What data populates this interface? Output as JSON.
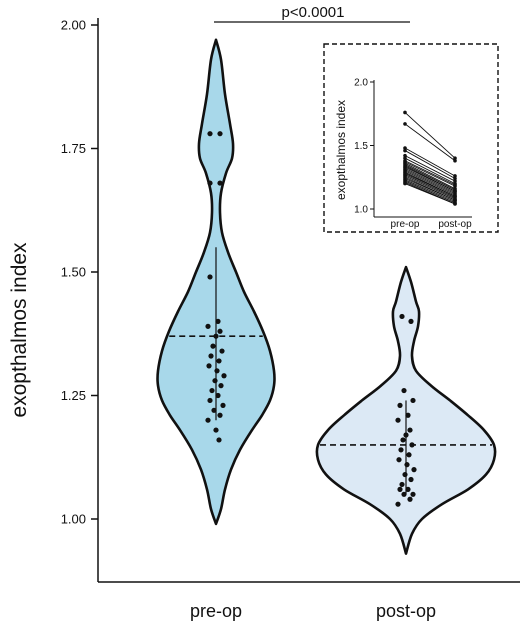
{
  "chart_data": [
    {
      "type": "violin",
      "ylabel": "exopthalmos index",
      "xlabel": "",
      "ylim": [
        1.0,
        2.0
      ],
      "yticks": [
        "1.00",
        "1.25",
        "1.50",
        "1.75",
        "2.00"
      ],
      "categories": [
        "pre-op",
        "post-op"
      ],
      "colors": {
        "pre-op": "#a8d8ea",
        "post-op": "#dce9f5"
      },
      "annotation": "p<0.0001",
      "series": [
        {
          "category": "pre-op",
          "median": 1.37,
          "whisker": [
            1.2,
            1.55
          ],
          "points": [
            1.78,
            1.78,
            1.68,
            1.68,
            1.49,
            1.4,
            1.39,
            1.38,
            1.37,
            1.35,
            1.34,
            1.33,
            1.32,
            1.31,
            1.3,
            1.29,
            1.28,
            1.27,
            1.26,
            1.25,
            1.24,
            1.23,
            1.22,
            1.21,
            1.2,
            1.18,
            1.16
          ]
        },
        {
          "category": "post-op",
          "median": 1.15,
          "whisker": [
            1.05,
            1.24
          ],
          "points": [
            1.41,
            1.4,
            1.26,
            1.24,
            1.23,
            1.21,
            1.2,
            1.18,
            1.17,
            1.16,
            1.15,
            1.14,
            1.13,
            1.12,
            1.11,
            1.1,
            1.09,
            1.08,
            1.07,
            1.06,
            1.06,
            1.05,
            1.05,
            1.04,
            1.03
          ]
        }
      ]
    },
    {
      "type": "line",
      "ylabel": "exopthalmos index",
      "ylim": [
        1.0,
        2.0
      ],
      "yticks": [
        "1.0",
        "1.5",
        "2.0"
      ],
      "categories": [
        "pre-op",
        "post-op"
      ],
      "pairs": [
        [
          1.76,
          1.4
        ],
        [
          1.67,
          1.38
        ],
        [
          1.48,
          1.26
        ],
        [
          1.46,
          1.24
        ],
        [
          1.42,
          1.22
        ],
        [
          1.4,
          1.2
        ],
        [
          1.38,
          1.19
        ],
        [
          1.37,
          1.18
        ],
        [
          1.36,
          1.16
        ],
        [
          1.35,
          1.15
        ],
        [
          1.34,
          1.14
        ],
        [
          1.33,
          1.14
        ],
        [
          1.32,
          1.13
        ],
        [
          1.31,
          1.12
        ],
        [
          1.3,
          1.11
        ],
        [
          1.29,
          1.1
        ],
        [
          1.28,
          1.1
        ],
        [
          1.27,
          1.09
        ],
        [
          1.26,
          1.08
        ],
        [
          1.25,
          1.07
        ],
        [
          1.24,
          1.07
        ],
        [
          1.23,
          1.06
        ],
        [
          1.22,
          1.05
        ],
        [
          1.21,
          1.04
        ],
        [
          1.2,
          1.04
        ]
      ]
    }
  ]
}
